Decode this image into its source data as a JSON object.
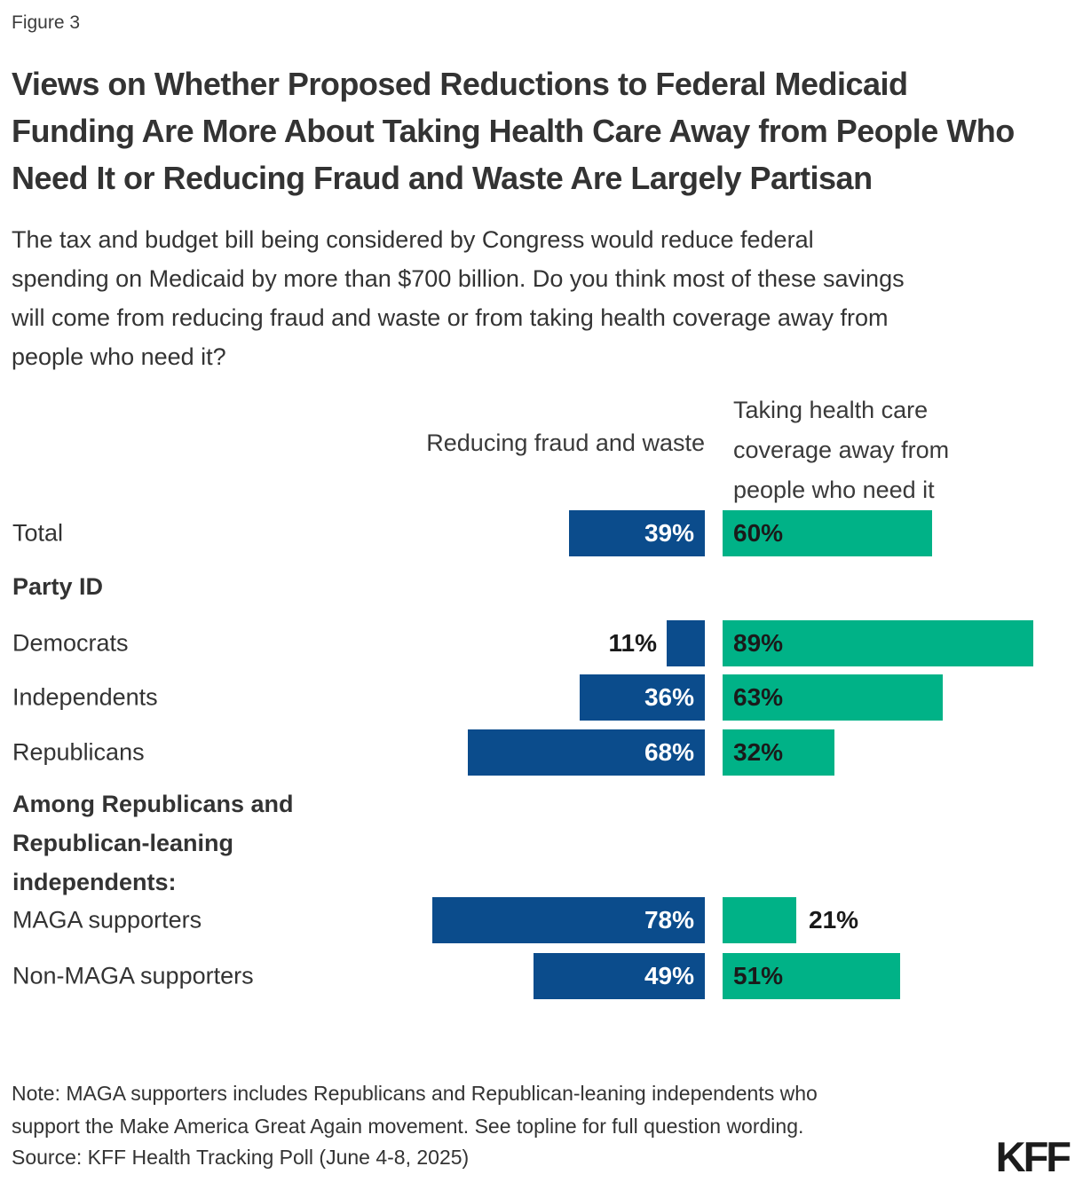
{
  "figure_label": "Figure 3",
  "title": "Views on Whether Proposed Reductions to Federal Medicaid Funding Are More About Taking Health Care Away from People Who Need It or Reducing Fraud and Waste Are Largely Partisan",
  "subtitle": "The tax and budget bill being considered by Congress would reduce federal spending on Medicaid by more than $700 billion. Do you think most of these savings will come from reducing fraud and waste or from taking health coverage away from people who need it?",
  "colors": {
    "reducing_fraud_blue": "#0B4C8C",
    "taking_coverage_teal": "#00B287",
    "text": "#333333",
    "bar_label_on_blue": "#ffffff",
    "bar_label_on_teal": "#1a1a1a"
  },
  "chart_data": {
    "type": "bar",
    "orientation": "horizontal-diverging",
    "title": "Views on Whether Proposed Reductions to Federal Medicaid Funding Are More About Taking Health Care Away from People Who Need It or Reducing Fraud and Waste Are Largely Partisan",
    "xlabel": "",
    "ylabel": "",
    "axis_range_percent": [
      0,
      100
    ],
    "grid": false,
    "legend_position": "column-headers-top",
    "series": [
      {
        "name": "Reducing fraud and waste",
        "color": "#0B4C8C"
      },
      {
        "name": "Taking health care coverage away from people who need it",
        "color": "#00B287"
      }
    ],
    "categories": [
      "Total",
      "Democrats",
      "Independents",
      "Republicans",
      "MAGA supporters",
      "Non-MAGA supporters"
    ],
    "group_headers": [
      {
        "label": "Party ID",
        "before_category": "Democrats"
      },
      {
        "label": "Among Republicans and Republican-leaning independents:",
        "before_category": "MAGA supporters"
      }
    ],
    "rows": [
      {
        "label": "Total",
        "left": {
          "value": 39,
          "label": "39%",
          "label_inside": true
        },
        "right": {
          "value": 60,
          "label": "60%",
          "label_inside": true
        }
      },
      {
        "label": "Democrats",
        "left": {
          "value": 11,
          "label": "11%",
          "label_inside": false
        },
        "right": {
          "value": 89,
          "label": "89%",
          "label_inside": true
        }
      },
      {
        "label": "Independents",
        "left": {
          "value": 36,
          "label": "36%",
          "label_inside": true
        },
        "right": {
          "value": 63,
          "label": "63%",
          "label_inside": true
        }
      },
      {
        "label": "Republicans",
        "left": {
          "value": 68,
          "label": "68%",
          "label_inside": true
        },
        "right": {
          "value": 32,
          "label": "32%",
          "label_inside": true
        }
      },
      {
        "label": "MAGA supporters",
        "left": {
          "value": 78,
          "label": "78%",
          "label_inside": true
        },
        "right": {
          "value": 21,
          "label": "21%",
          "label_inside": false
        }
      },
      {
        "label": "Non-MAGA supporters",
        "left": {
          "value": 49,
          "label": "49%",
          "label_inside": true
        },
        "right": {
          "value": 51,
          "label": "51%",
          "label_inside": true
        }
      }
    ]
  },
  "note": "Note: MAGA supporters includes Republicans and Republican-leaning independents who support the Make America Great Again movement. See topline for full question wording.",
  "source": "Source: KFF Health Tracking Poll (June 4-8, 2025)",
  "logo": "KFF"
}
